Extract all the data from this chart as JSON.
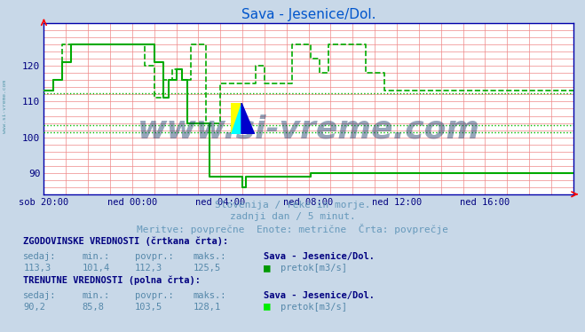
{
  "title": "Sava - Jesenice/Dol.",
  "title_color": "#0055cc",
  "bg_color": "#c8d8e8",
  "plot_bg_color": "#ffffff",
  "xlabel_color": "#000080",
  "ylabel_color": "#000080",
  "yticks": [
    90,
    100,
    110,
    120
  ],
  "ylim": [
    84,
    132
  ],
  "xlim": [
    0,
    288
  ],
  "xtick_labels": [
    "sob 20:00",
    "ned 00:00",
    "ned 04:00",
    "ned 08:00",
    "ned 12:00",
    "ned 16:00"
  ],
  "xtick_positions": [
    0,
    48,
    96,
    144,
    192,
    240
  ],
  "hist_avg": 112.3,
  "hist_min": 101.4,
  "curr_avg": 103.5,
  "curr_min": 85.8,
  "line_color": "#00aa00",
  "subtitle1": "Slovenija / reke in morje.",
  "subtitle2": "zadnji dan / 5 minut.",
  "subtitle3": "Meritve: povprečne  Enote: metrične  Črta: povprečje",
  "text_color": "#6699bb",
  "hist_label": "ZGODOVINSKE VREDNOSTI (črtkana črta):",
  "curr_label": "TRENUTNE VREDNOSTI (polna črta):",
  "hist_sedaj": "113,3",
  "hist_min_val": "101,4",
  "hist_povpr": "112,3",
  "hist_maks": "125,5",
  "curr_sedaj": "90,2",
  "curr_min_val": "85,8",
  "curr_povpr": "103,5",
  "curr_maks": "128,1",
  "station": "Sava - Jesenice/Dol.",
  "unit": "pretok[m3/s]",
  "watermark": "www.si-vreme.com",
  "watermark_color": "#1a3a6a",
  "sidebar_text": "www.si-vreme.com"
}
